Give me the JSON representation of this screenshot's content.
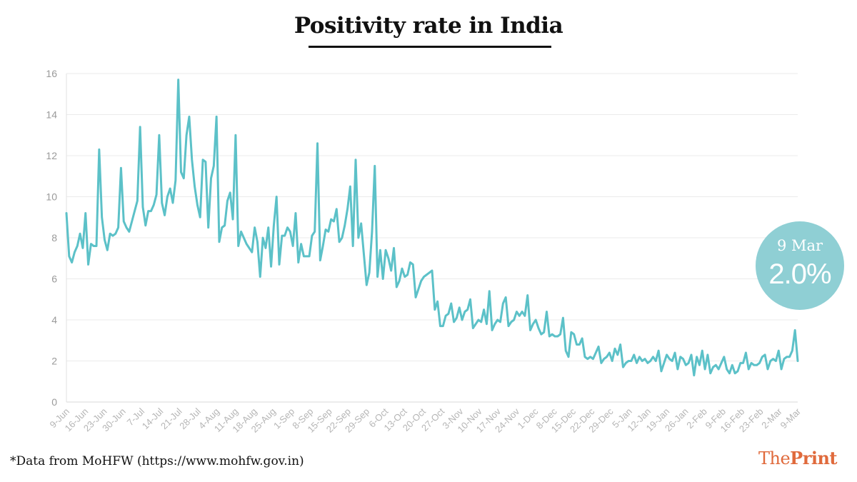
{
  "title": "Positivity rate in India",
  "source_note": "*Data from MoHFW (https://www.mohfw.gov.in)",
  "logo": {
    "part1": "The",
    "part2": "Print"
  },
  "badge": {
    "date": "9 Mar",
    "value": "2.0%"
  },
  "colors": {
    "line": "#5cc1c8",
    "badge": "#8fcfd4",
    "grid": "#ebebeb",
    "logo": "#e06a3c"
  },
  "chart_data": {
    "type": "line",
    "title": "Positivity rate in India",
    "xlabel": "",
    "ylabel": "",
    "ylim": [
      0,
      16
    ],
    "y_ticks": [
      0,
      2,
      4,
      6,
      8,
      10,
      12,
      14,
      16
    ],
    "x_ticks": [
      "9-Jun",
      "16-Jun",
      "23-Jun",
      "30-Jun",
      "7-Jul",
      "14-Jul",
      "21-Jul",
      "28-Jul",
      "4-Aug",
      "11-Aug",
      "18-Aug",
      "25-Aug",
      "1-Sep",
      "8-Sep",
      "15-Sep",
      "22-Sep",
      "29-Sep",
      "6-Oct",
      "13-Oct",
      "20-Oct",
      "27-Oct",
      "3-Nov",
      "10-Nov",
      "17-Nov",
      "24-Nov",
      "1-Dec",
      "8-Dec",
      "15-Dec",
      "22-Dec",
      "29-Dec",
      "5-Jan",
      "12-Jan",
      "19-Jan",
      "26-Jan",
      "2-Feb",
      "9-Feb",
      "16-Feb",
      "23-Feb",
      "2-Mar",
      "9-Mar"
    ],
    "grid": "horizontal",
    "series": [
      {
        "values": [
          9.2,
          7.1,
          6.8,
          7.3,
          7.6,
          8.2,
          7.5,
          9.2,
          6.7,
          7.7,
          7.6,
          7.6,
          12.3,
          9.0,
          7.9,
          7.4,
          8.2,
          8.1,
          8.2,
          8.5,
          11.4,
          8.8,
          8.5,
          8.3,
          8.8,
          9.3,
          9.8,
          13.4,
          9.5,
          8.6,
          9.3,
          9.3,
          9.6,
          10.1,
          13.0,
          9.7,
          9.1,
          10.0,
          10.4,
          9.7,
          10.8,
          15.7,
          11.2,
          10.9,
          13.0,
          13.9,
          11.8,
          10.5,
          9.6,
          9.0,
          11.8,
          11.7,
          8.5,
          10.9,
          11.5,
          13.9,
          7.8,
          8.5,
          8.6,
          9.8,
          10.2,
          8.9,
          13.0,
          7.6,
          8.3,
          8.0,
          7.7,
          7.5,
          7.3,
          8.5,
          7.8,
          6.1,
          8.0,
          7.5,
          8.5,
          6.6,
          8.6,
          10.0,
          6.7,
          8.1,
          8.1,
          8.5,
          8.3,
          7.6,
          9.2,
          6.8,
          7.7,
          7.1,
          7.1,
          7.1,
          8.1,
          8.3,
          12.6,
          6.9,
          7.6,
          8.4,
          8.3,
          8.9,
          8.8,
          9.4,
          7.8,
          8.0,
          8.6,
          9.4,
          10.5,
          7.6,
          11.8,
          8.0,
          8.7,
          7.2,
          5.7,
          6.3,
          8.3,
          11.5,
          6.1,
          7.4,
          6.0,
          7.4,
          7.0,
          6.4,
          7.5,
          5.6,
          5.9,
          6.5,
          6.1,
          6.2,
          6.8,
          6.7,
          5.1,
          5.5,
          5.9,
          6.1,
          6.2,
          6.3,
          6.4,
          4.5,
          4.9,
          3.7,
          3.7,
          4.2,
          4.3,
          4.8,
          3.9,
          4.1,
          4.6,
          4.0,
          4.4,
          4.5,
          5.0,
          3.6,
          3.8,
          4.0,
          3.9,
          4.5,
          3.8,
          5.4,
          3.5,
          3.8,
          4.0,
          3.9,
          4.8,
          5.1,
          3.7,
          3.9,
          4.0,
          4.4,
          4.2,
          4.4,
          4.2,
          5.2,
          3.5,
          3.8,
          4.0,
          3.6,
          3.3,
          3.4,
          4.4,
          3.2,
          3.3,
          3.2,
          3.2,
          3.3,
          4.1,
          2.5,
          2.2,
          3.4,
          3.3,
          2.8,
          2.8,
          3.1,
          2.2,
          2.1,
          2.2,
          2.1,
          2.4,
          2.7,
          1.9,
          2.1,
          2.2,
          2.4,
          2.0,
          2.6,
          2.3,
          2.8,
          1.7,
          1.9,
          2.0,
          2.0,
          2.3,
          1.9,
          2.2,
          2.0,
          2.1,
          1.9,
          2.0,
          2.2,
          2.0,
          2.5,
          1.5,
          1.9,
          2.3,
          2.1,
          2.0,
          2.4,
          1.6,
          2.2,
          2.1,
          1.8,
          1.9,
          2.3,
          1.3,
          2.2,
          1.8,
          2.5,
          1.6,
          2.3,
          1.4,
          1.7,
          1.8,
          1.6,
          1.9,
          2.2,
          1.6,
          1.4,
          1.8,
          1.4,
          1.5,
          1.9,
          1.9,
          2.4,
          1.6,
          1.9,
          1.8,
          1.8,
          1.9,
          2.2,
          2.3,
          1.6,
          2.0,
          2.1,
          2.0,
          2.5,
          1.6,
          2.1,
          2.2,
          2.2,
          2.5,
          3.5,
          2.0
        ]
      }
    ]
  }
}
